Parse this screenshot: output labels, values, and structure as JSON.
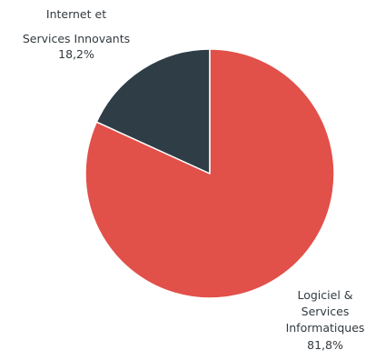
{
  "chart_data": {
    "type": "pie",
    "slices": [
      {
        "label_lines": [
          "Internet et",
          "Services Innovants"
        ],
        "value": 18.2,
        "value_label": "18,2%",
        "color": "#2f3e46"
      },
      {
        "label_lines": [
          "Logiciel &",
          "Services",
          "Informatiques"
        ],
        "value": 81.8,
        "value_label": "81,8%",
        "color": "#e2504a"
      }
    ],
    "start_angle": "12 o'clock",
    "direction": "counter-clockwise from the top for the first slice",
    "legend": "none"
  }
}
